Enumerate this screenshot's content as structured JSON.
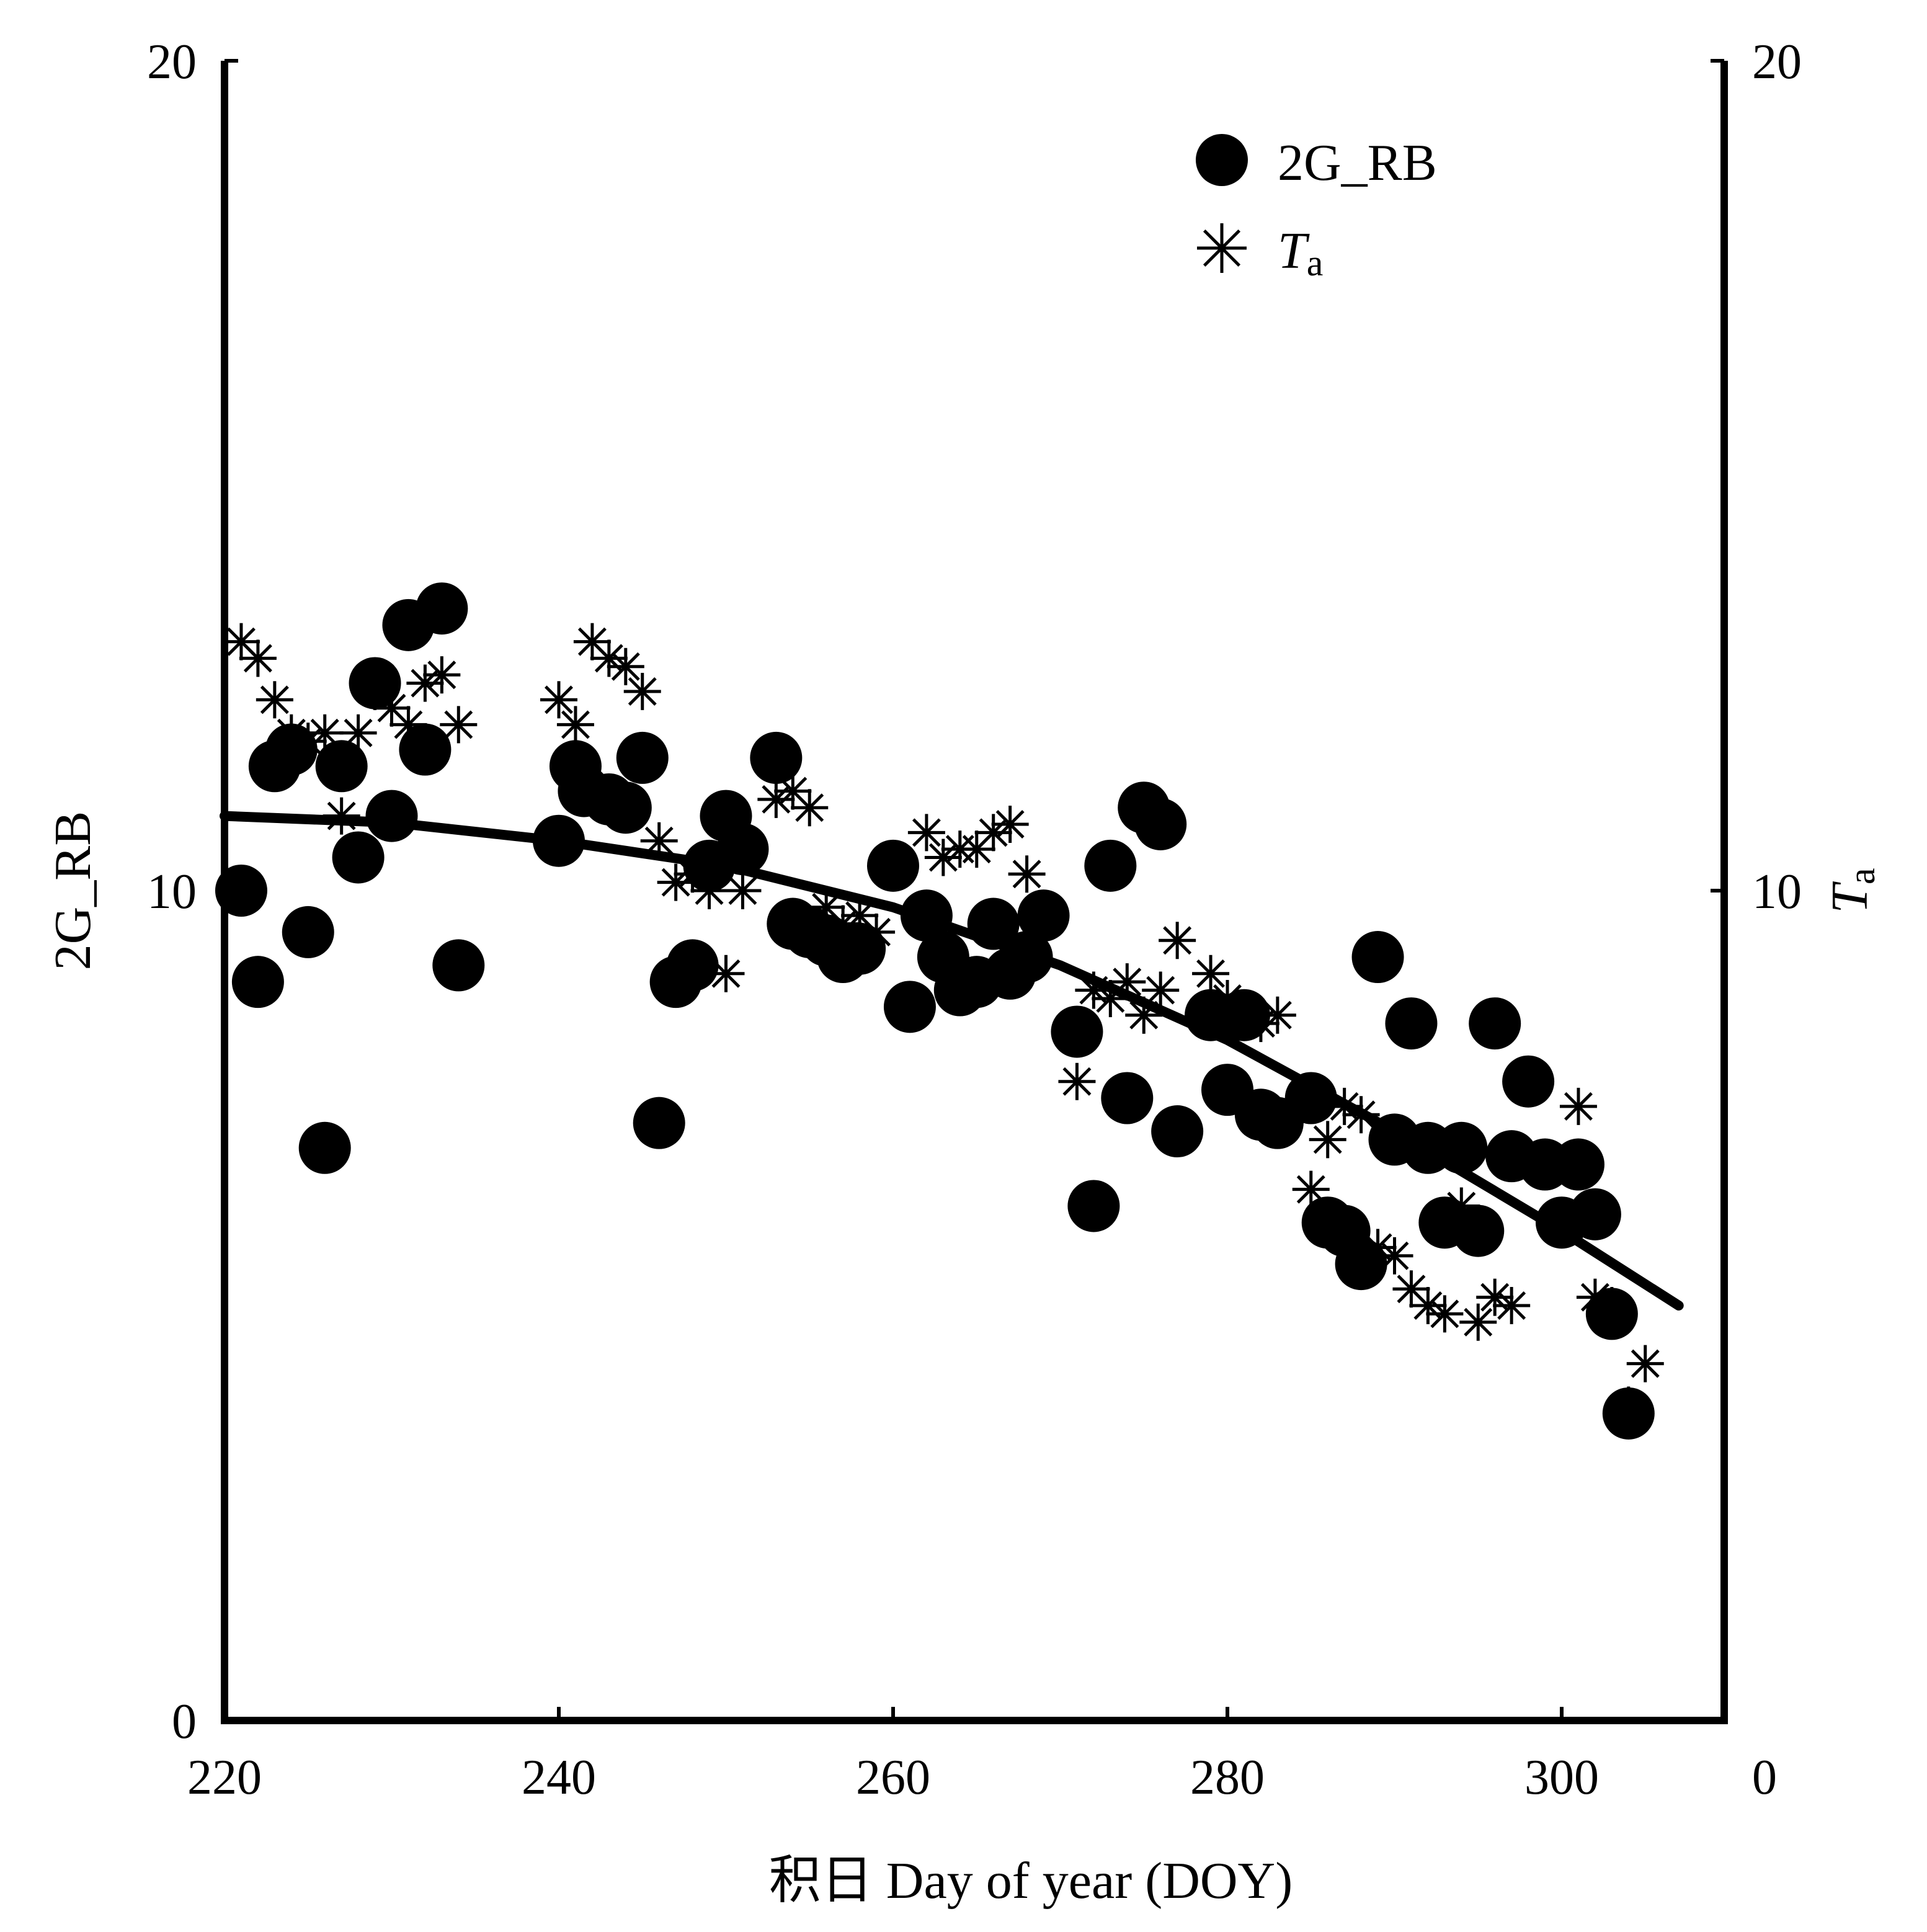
{
  "chart_data": {
    "type": "scatter",
    "xlabel": "积日 Day of year (DOY)",
    "ylabel_left": "2G_RB",
    "ylabel_right_main": "T",
    "ylabel_right_sub": "a",
    "xlim": [
      220,
      310
    ],
    "ylim_left": [
      0,
      20
    ],
    "ylim_right": [
      0,
      20
    ],
    "x_ticks": [
      "220",
      "240",
      "260",
      "280",
      "300"
    ],
    "y_ticks_left": [
      "0",
      "10",
      "20"
    ],
    "y_ticks_right": [
      "0",
      "10",
      "20"
    ],
    "grid": false,
    "legend_position": "top-right",
    "legend": [
      {
        "label": "2G_RB",
        "marker": "circle"
      },
      {
        "label_main": "T",
        "label_sub": "a",
        "marker": "asterisk"
      }
    ],
    "series": [
      {
        "name": "2G_RB",
        "marker": "circle",
        "x": [
          221,
          222,
          223,
          224,
          225,
          226,
          227,
          228,
          229,
          230,
          231,
          232,
          233,
          234,
          240,
          241,
          241.5,
          243,
          244,
          245,
          246,
          247,
          248,
          249,
          250,
          251,
          253,
          254,
          255,
          256,
          257,
          258,
          260,
          261,
          262,
          263,
          264,
          265,
          266,
          267,
          268,
          269,
          271,
          272,
          273,
          274,
          275,
          276,
          277,
          279,
          280,
          281,
          282,
          283,
          285,
          286,
          287,
          288,
          289,
          290,
          291,
          292,
          293,
          294,
          295,
          296,
          297,
          298,
          299,
          300,
          301,
          302,
          303,
          304
        ],
        "y": [
          10,
          8.9,
          11.5,
          11.7,
          9.5,
          6.9,
          11.5,
          10.4,
          12.5,
          10.9,
          13.2,
          11.7,
          13.4,
          9.1,
          10.6,
          11.5,
          11.2,
          11.1,
          11,
          11.6,
          7.2,
          8.9,
          9.1,
          10.3,
          10.9,
          10.5,
          11.6,
          9.6,
          9.5,
          9.4,
          9.2,
          9.3,
          10.3,
          8.6,
          9.7,
          9.2,
          8.8,
          8.9,
          9.6,
          9.0,
          9.2,
          9.7,
          8.3,
          6.2,
          10.3,
          7.5,
          11.0,
          10.8,
          7.1,
          8.5,
          7.6,
          8.5,
          7.3,
          7.2,
          7.5,
          6.0,
          5.9,
          5.5,
          9.2,
          7.0,
          8.4,
          6.9,
          6.0,
          6.9,
          5.9,
          8.4,
          6.8,
          7.7,
          6.7,
          6.0,
          6.7,
          6.1,
          4.9,
          3.7
        ]
      },
      {
        "name_main": "T",
        "name_sub": "a",
        "marker": "asterisk",
        "x": [
          221,
          222,
          223,
          224,
          225,
          226,
          227,
          228,
          229,
          230,
          231,
          232,
          233,
          234,
          240,
          241,
          242,
          243,
          244,
          245,
          246,
          247,
          248,
          249,
          250,
          251,
          253,
          254,
          255,
          256,
          257,
          258,
          259,
          262,
          263,
          264,
          265,
          266,
          267,
          268,
          271,
          272,
          273,
          274,
          275,
          276,
          277,
          279,
          280,
          281,
          282,
          283,
          285,
          286,
          287,
          288,
          289,
          290,
          291,
          292,
          293,
          294,
          295,
          296,
          297,
          301,
          302,
          303,
          304,
          305
        ],
        "y": [
          13,
          12.8,
          12.3,
          11.9,
          11.8,
          11.9,
          10.9,
          11.9,
          12.4,
          12.2,
          12.0,
          12.5,
          12.6,
          12.0,
          12.3,
          12.0,
          13.0,
          12.8,
          12.7,
          12.4,
          10.6,
          10.1,
          10.2,
          10.0,
          9.0,
          10.0,
          11.1,
          11.2,
          11.0,
          9.8,
          9.6,
          9.7,
          9.5,
          10.7,
          10.4,
          10.5,
          10.5,
          10.7,
          10.8,
          10.2,
          7.7,
          8.8,
          8.7,
          8.9,
          8.5,
          8.8,
          9.4,
          9.0,
          8.7,
          8.5,
          8.4,
          8.5,
          6.4,
          7.0,
          7.4,
          7.3,
          5.7,
          5.6,
          5.2,
          5.0,
          4.9,
          6.2,
          4.8,
          5.1,
          5.0,
          7.4,
          5.1,
          5.0,
          3.8,
          4.3
        ]
      },
      {
        "name": "trend",
        "marker": "line",
        "x": [
          220,
          230,
          240,
          250,
          260,
          270,
          280,
          290,
          300,
          307
        ],
        "y": [
          10.9,
          10.82,
          10.6,
          10.3,
          9.8,
          9.1,
          8.2,
          7.1,
          5.9,
          5.0
        ]
      }
    ]
  }
}
